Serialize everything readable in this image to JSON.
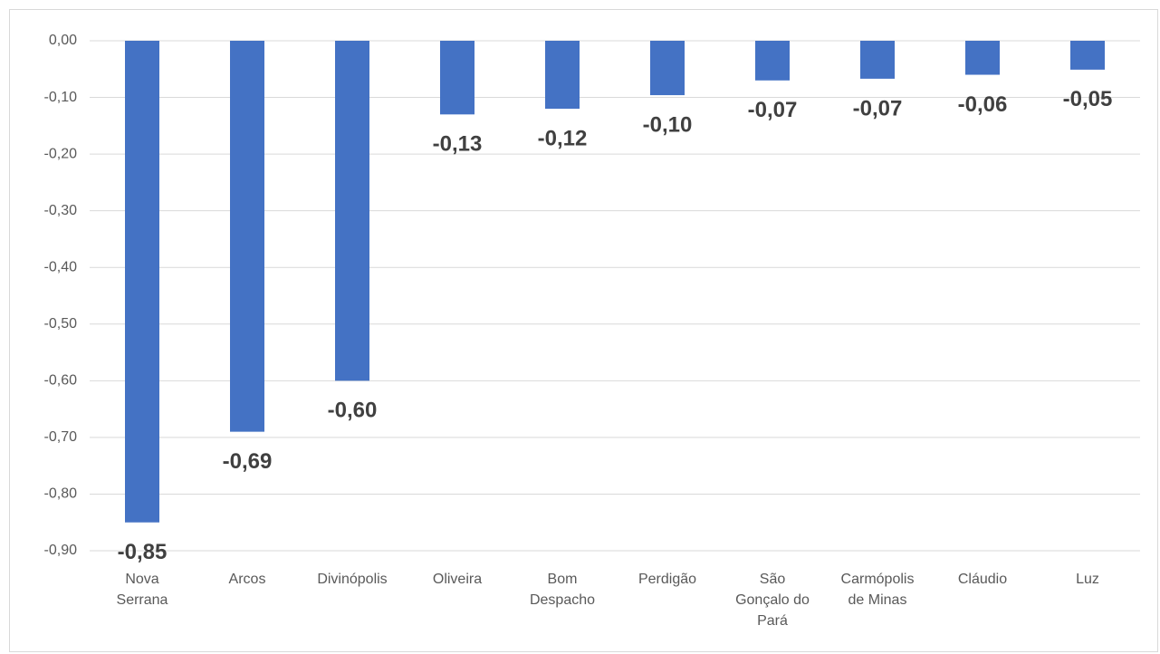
{
  "chart_data": {
    "type": "bar",
    "categories": [
      "Nova\nSerrana",
      "Arcos",
      "Divinópolis",
      "Oliveira",
      "Bom\nDespacho",
      "Perdigão",
      "São\nGonçalo do\nPará",
      "Carmópolis\nde Minas",
      "Cláudio",
      "Luz"
    ],
    "values": [
      -0.85,
      -0.69,
      -0.6,
      -0.13,
      -0.12,
      -0.096,
      -0.07,
      -0.067,
      -0.06,
      -0.051
    ],
    "value_labels": [
      "-0,85",
      "-0,69",
      "-0,60",
      "-0,13",
      "-0,12",
      "-0,10",
      "-0,07",
      "-0,07",
      "-0,06",
      "-0,05"
    ],
    "color": "#4472c4",
    "ylim": [
      -0.9,
      0
    ],
    "yticks": [
      {
        "value": 0,
        "label": "0,00"
      },
      {
        "value": -0.1,
        "label": "-0,10"
      },
      {
        "value": -0.2,
        "label": "-0,20"
      },
      {
        "value": -0.3,
        "label": "-0,30"
      },
      {
        "value": -0.4,
        "label": "-0,40"
      },
      {
        "value": -0.5,
        "label": "-0,50"
      },
      {
        "value": -0.6,
        "label": "-0,60"
      },
      {
        "value": -0.7,
        "label": "-0,70"
      },
      {
        "value": -0.8,
        "label": "-0,80"
      },
      {
        "value": -0.9,
        "label": "-0,90"
      }
    ],
    "grid": true
  }
}
